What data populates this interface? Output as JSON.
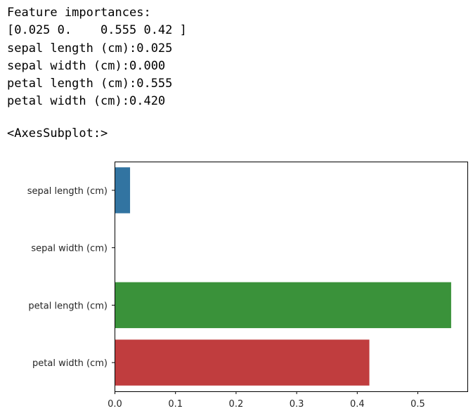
{
  "output": {
    "lines": [
      "Feature importances:",
      "[0.025 0.    0.555 0.42 ]",
      "sepal length (cm):0.025",
      "sepal width (cm):0.000",
      "petal length (cm):0.555",
      "petal width (cm):0.420"
    ],
    "repr": "<AxesSubplot:>"
  },
  "chart_data": {
    "type": "bar",
    "orientation": "horizontal",
    "categories": [
      "sepal length (cm)",
      "sepal width (cm)",
      "petal length (cm)",
      "petal width (cm)"
    ],
    "values": [
      0.025,
      0.0,
      0.555,
      0.42
    ],
    "colors": [
      "#3274a1",
      "#e1812c",
      "#3a923a",
      "#c03d3e"
    ],
    "xlim": [
      0,
      0.58
    ],
    "xticks": [
      0.0,
      0.1,
      0.2,
      0.3,
      0.4,
      0.5
    ],
    "xtick_labels": [
      "0.0",
      "0.1",
      "0.2",
      "0.3",
      "0.4",
      "0.5"
    ],
    "title": "",
    "xlabel": "",
    "ylabel": "",
    "grid": false
  }
}
